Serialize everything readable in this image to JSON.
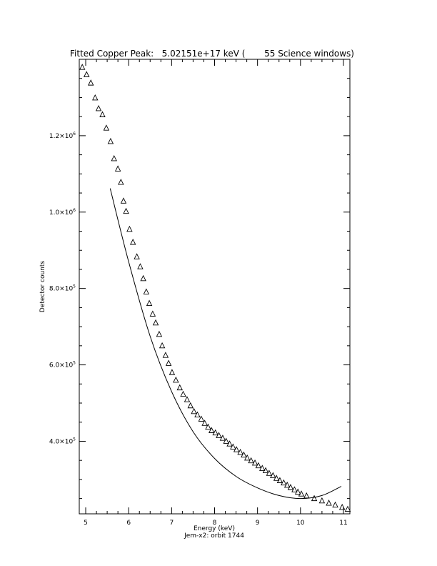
{
  "chart_data": {
    "type": "scatter",
    "title": "Fitted Copper Peak:   5.02151e+17 keV (       55 Science windows)",
    "xlabel": "Energy (keV)",
    "subtitle": "Jem-x2: orbit 1744",
    "ylabel": "Detector counts",
    "xlim": [
      4.85,
      11.15
    ],
    "ylim": [
      210000,
      1400000
    ],
    "x_ticks": [
      {
        "value": 5,
        "label": "5"
      },
      {
        "value": 6,
        "label": "6"
      },
      {
        "value": 7,
        "label": "7"
      },
      {
        "value": 8,
        "label": "8"
      },
      {
        "value": 9,
        "label": "9"
      },
      {
        "value": 10,
        "label": "10"
      },
      {
        "value": 11,
        "label": "11"
      }
    ],
    "y_ticks": [
      {
        "value": 400000,
        "mantissa": "4.0",
        "exp": "5"
      },
      {
        "value": 600000,
        "mantissa": "6.0",
        "exp": "5"
      },
      {
        "value": 800000,
        "mantissa": "8.0",
        "exp": "5"
      },
      {
        "value": 1000000,
        "mantissa": "1.0",
        "exp": "6"
      },
      {
        "value": 1200000,
        "mantissa": "1.2",
        "exp": "6"
      }
    ],
    "y_tick_base": "×10",
    "grid": false,
    "series": [
      {
        "marker": "triangle-open",
        "x": [
          4.92,
          5.02,
          5.12,
          5.22,
          5.3,
          5.39,
          5.48,
          5.58,
          5.66,
          5.75,
          5.82,
          5.88,
          5.94,
          6.02,
          6.1,
          6.19,
          6.27,
          6.34,
          6.41,
          6.48,
          6.56,
          6.63,
          6.71,
          6.78,
          6.86,
          6.93,
          7.01,
          7.1,
          7.19,
          7.27,
          7.36,
          7.44,
          7.52,
          7.6,
          7.69,
          7.77,
          7.85,
          7.93,
          8.02,
          8.1,
          8.19,
          8.27,
          8.35,
          8.43,
          8.51,
          8.6,
          8.68,
          8.76,
          8.85,
          8.94,
          9.02,
          9.11,
          9.19,
          9.27,
          9.36,
          9.44,
          9.52,
          9.61,
          9.69,
          9.77,
          9.86,
          9.94,
          10.02,
          10.14,
          10.32,
          10.5,
          10.66,
          10.81,
          10.97,
          11.1
        ],
        "y": [
          1379000,
          1360000,
          1338000,
          1299000,
          1271000,
          1255000,
          1220000,
          1185000,
          1140000,
          1113000,
          1078000,
          1029000,
          1002000,
          955000,
          921000,
          883000,
          857000,
          826000,
          791000,
          761000,
          733000,
          710000,
          680000,
          650000,
          625000,
          604000,
          580000,
          560000,
          540000,
          523000,
          509000,
          493000,
          478000,
          469000,
          458000,
          447000,
          437000,
          428000,
          422000,
          415000,
          408000,
          400000,
          393000,
          385000,
          378000,
          371000,
          364000,
          356000,
          349000,
          343000,
          336000,
          329000,
          323000,
          316000,
          310000,
          303000,
          297000,
          291000,
          285000,
          279000,
          273000,
          267000,
          262000,
          257000,
          250000,
          244000,
          238000,
          233000,
          227000,
          222000
        ]
      },
      {
        "marker": "line",
        "x": [
          5.57,
          6.0,
          6.5,
          7.0,
          7.5,
          8.0,
          8.5,
          9.0,
          9.5,
          10.0,
          10.5,
          10.95
        ],
        "y": [
          1062000,
          870000,
          675000,
          530000,
          425000,
          355000,
          308000,
          278000,
          258000,
          250000,
          258000,
          282000
        ]
      }
    ]
  }
}
